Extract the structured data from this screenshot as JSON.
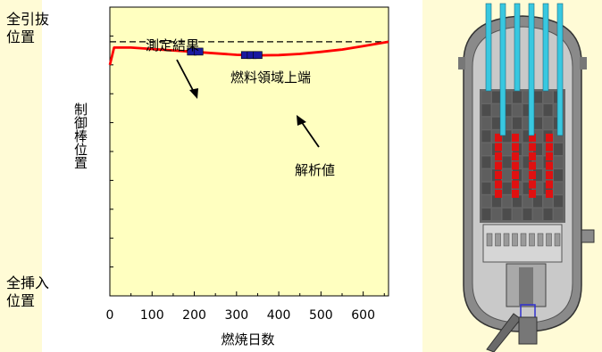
{
  "labels": {
    "full_withdrawn": "全引抜\n位置",
    "full_inserted": "全挿入\n位置",
    "ylabel": "制御棒位置",
    "xlabel": "燃焼日数",
    "measured": "測定結果",
    "fuel_top": "燃料領域上端",
    "analysis": "解析値"
  },
  "colors": {
    "slide_background": "#fffbd6",
    "plot_background": "#ffffc0",
    "analysis_line": "#ff0000",
    "measured_marker": "#1a1aa0",
    "reactor_rods": "#e01010",
    "reactor_tubes": "#38c8e0"
  },
  "chart_data": {
    "type": "line",
    "xlabel": "燃焼日数",
    "ylabel": "制御棒位置",
    "x_ticks": [
      0,
      100,
      200,
      300,
      400,
      500,
      600
    ],
    "x_tick_labels": [
      "0",
      "100",
      "200",
      "300",
      "400",
      "500",
      "600"
    ],
    "xlim": [
      0,
      660
    ],
    "ylim": [
      0,
      100
    ],
    "y_axis_endpoints": {
      "top": "全引抜 位置",
      "bottom": "全挿入 位置"
    },
    "reference_line": {
      "name": "燃料領域上端",
      "y": 88,
      "style": "dashed"
    },
    "series": [
      {
        "name": "解析値",
        "style": "line",
        "x": [
          0,
          5,
          10,
          50,
          100,
          200,
          300,
          350,
          400,
          450,
          500,
          550,
          600,
          660
        ],
        "y": [
          80,
          83,
          86,
          86,
          85.5,
          84.5,
          83.5,
          83.3,
          83.4,
          83.8,
          84.5,
          85.3,
          86.5,
          88
        ]
      },
      {
        "name": "測定結果",
        "style": "marker",
        "x": [
          194,
          210,
          322,
          336,
          350
        ],
        "y": [
          84.6,
          84.6,
          83.4,
          83.4,
          83.4
        ]
      }
    ]
  }
}
